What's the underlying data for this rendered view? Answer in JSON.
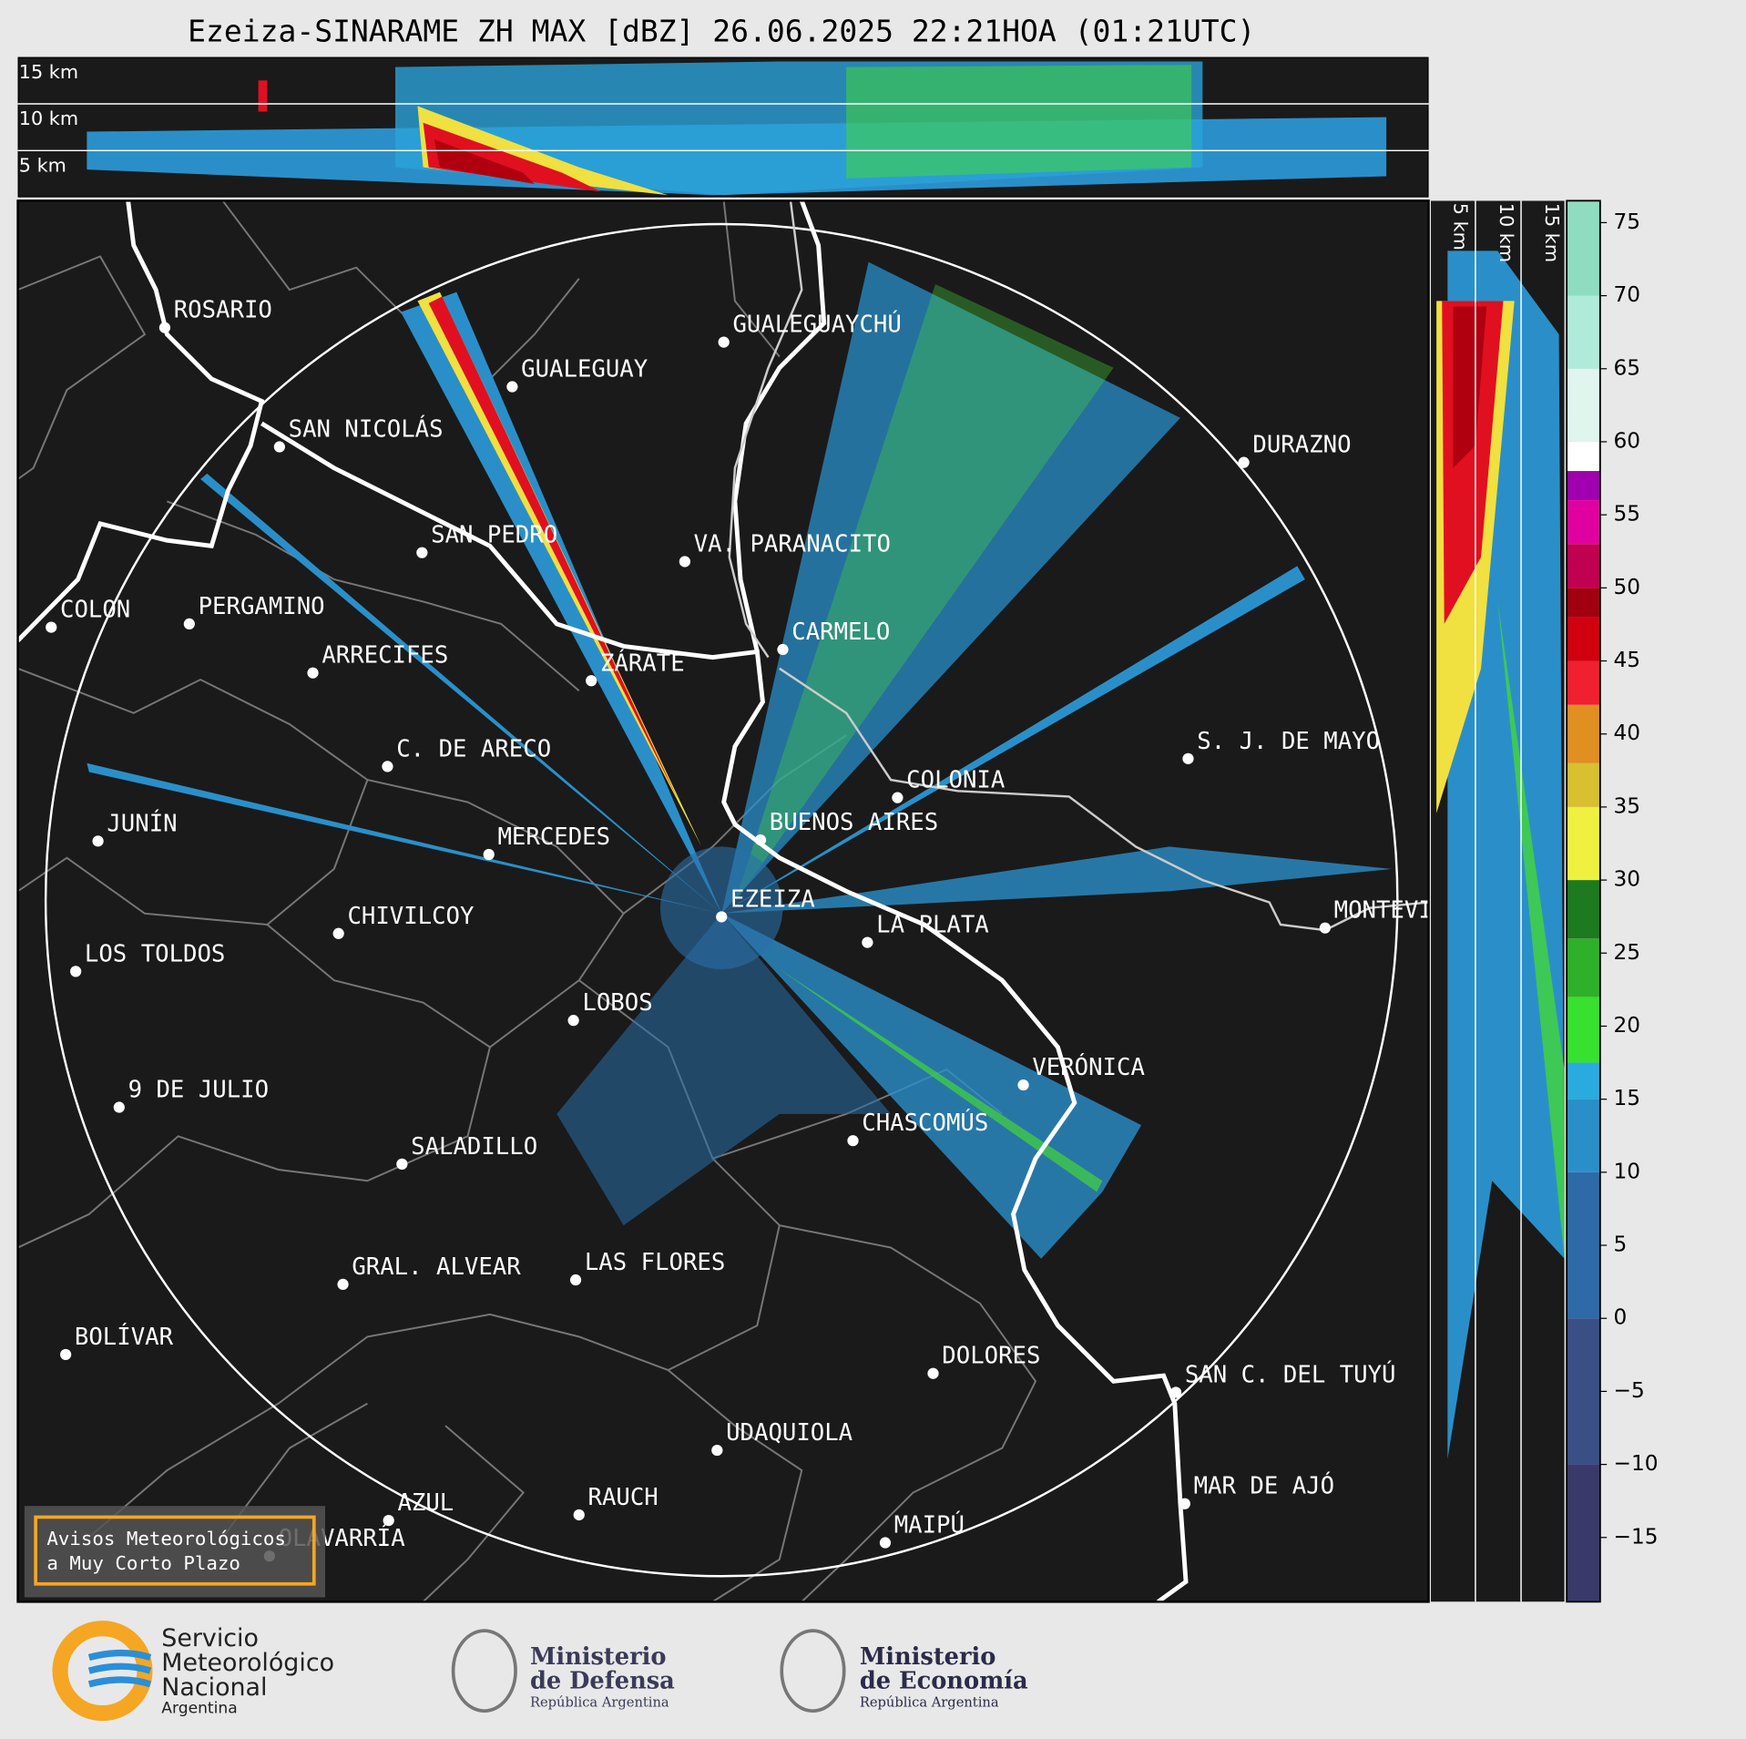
{
  "title": "Ezeiza-SINARAME ZH MAX [dBZ] 26.06.2025 22:21HOA (01:21UTC)",
  "top_panel": {
    "height_labels": [
      "15 km",
      "10 km",
      "5 km"
    ]
  },
  "side_panel": {
    "height_labels": [
      "5 km",
      "10 km",
      "15 km"
    ]
  },
  "cities": [
    "ROSARIO",
    "GUALEGUAYCHÚ",
    "GUALEGUAY",
    "SAN NICOLÁS",
    "DURAZNO",
    "SAN PEDRO",
    "VA. PARANACITO",
    "COLON",
    "PERGAMINO",
    "CARMELO",
    "ARRECIFES",
    "ZÁRATE",
    "S. J. DE MAYO",
    "C. DE ARECO",
    "COLONIA",
    "BUENOS AIRES",
    "JUNÍN",
    "MERCEDES",
    "EZEIZA",
    "MONTEVIDEO",
    "LA PLATA",
    "CHIVILCOY",
    "LOS TOLDOS",
    "LOBOS",
    "VERÓNICA",
    "9 DE JULIO",
    "CHASCOMÚS",
    "SALADILLO",
    "GRAL. ALVEAR",
    "LAS FLORES",
    "BOLÍVAR",
    "DOLORES",
    "SAN C. DEL TUYÚ",
    "UDAQUIOLA",
    "MAR DE AJÓ",
    "AZUL",
    "RAUCH",
    "MAIPÚ",
    "OLAVARRÍA"
  ],
  "warning_box": [
    "Avisos Meteorológicos",
    "a Muy Corto Plazo"
  ],
  "colorbar": {
    "ylim": [
      -19.4,
      76.5
    ],
    "yticks": [
      {
        "value": -15,
        "label": "−15"
      },
      {
        "value": -10,
        "label": "−10"
      },
      {
        "value": -5,
        "label": "−5"
      },
      0,
      5,
      10,
      15,
      20,
      25,
      30,
      35,
      40,
      45,
      50,
      55,
      60,
      65,
      70,
      75
    ]
  },
  "logos": {
    "smn": [
      "Servicio",
      "Meteorológico",
      "Nacional",
      "Argentina"
    ],
    "defensa": [
      "Ministerio",
      "de Defensa",
      "República Argentina"
    ],
    "economia": [
      "Ministerio",
      "de Economía",
      "República Argentina"
    ]
  }
}
